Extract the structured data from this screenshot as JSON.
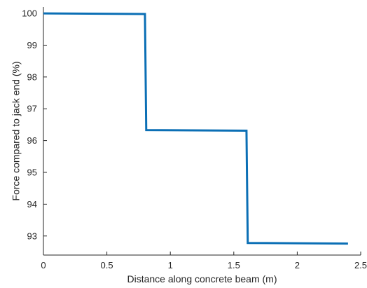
{
  "chart_data": {
    "type": "line",
    "title": "",
    "xlabel": "Distance along concrete beam (m)",
    "ylabel": "Force compared to jack end (%)",
    "xlim": [
      0,
      2.5
    ],
    "ylim": [
      92.4,
      100.2
    ],
    "xticks": [
      0,
      0.5,
      1,
      1.5,
      2,
      2.5
    ],
    "xtick_labels": [
      "0",
      "0.5",
      "1",
      "1.5",
      "2",
      "2.5"
    ],
    "yticks": [
      93,
      94,
      95,
      96,
      97,
      98,
      99,
      100
    ],
    "ytick_labels": [
      "93",
      "94",
      "95",
      "96",
      "97",
      "98",
      "99",
      "100"
    ],
    "grid": false,
    "legend": "none",
    "series": [
      {
        "color": "#0b6fb5",
        "x": [
          0,
          0.8,
          0.81,
          1.6,
          1.61,
          2.4
        ],
        "y": [
          100,
          99.98,
          96.33,
          96.31,
          92.78,
          92.76
        ]
      }
    ]
  }
}
